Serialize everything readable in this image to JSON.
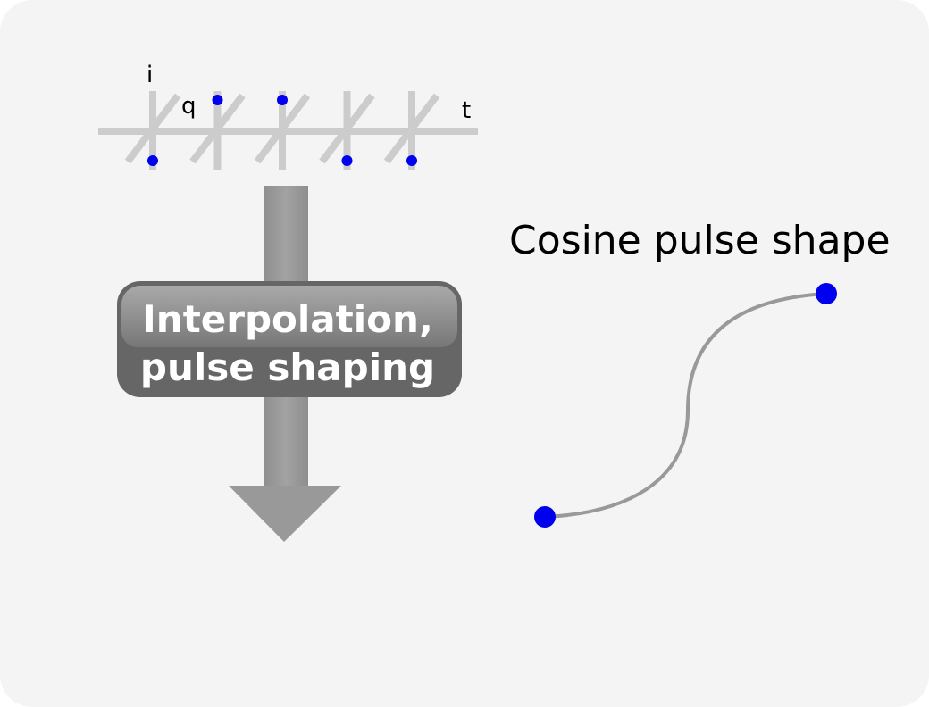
{
  "diagram": {
    "axis_labels": {
      "i": "i",
      "q": "q",
      "t": "t"
    },
    "samples": [
      {
        "index": 1,
        "level": "low"
      },
      {
        "index": 2,
        "level": "high"
      },
      {
        "index": 3,
        "level": "high"
      },
      {
        "index": 4,
        "level": "low"
      },
      {
        "index": 5,
        "level": "low"
      }
    ],
    "process_block": {
      "line1": "Interpolation,",
      "line2": "pulse shaping"
    },
    "pulse": {
      "title": "Cosine pulse shape"
    },
    "colors": {
      "background": "#f4f4f4",
      "axis": "#cccccc",
      "dot": "#0000ee",
      "arrow": "#999999",
      "block": "#666666",
      "curve": "#999999",
      "label_text": "#ffffff"
    }
  }
}
